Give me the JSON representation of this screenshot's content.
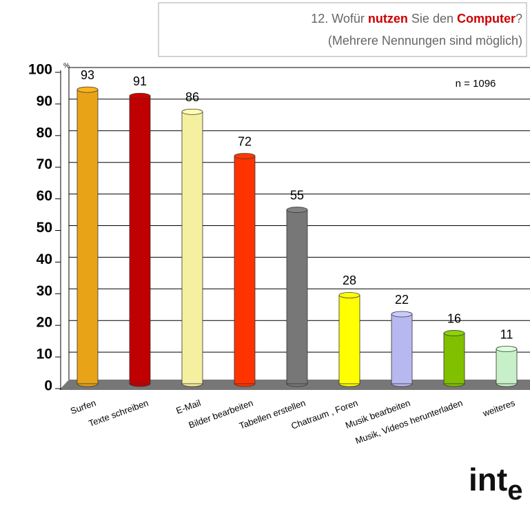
{
  "chart_data": {
    "type": "bar",
    "title_parts": [
      {
        "text": "12. Wofür ",
        "color": "#666666"
      },
      {
        "text": "nutzen",
        "color": "#cc0000"
      },
      {
        "text": " Sie den ",
        "color": "#666666"
      },
      {
        "text": "Computer",
        "color": "#cc0000"
      },
      {
        "text": "?",
        "color": "#666666"
      }
    ],
    "subtitle": "(Mehrere Nennungen sind möglich)",
    "annotation": "n = 1096",
    "unit": "%",
    "logo_parts": [
      "int",
      "e"
    ],
    "categories": [
      "Surfen",
      "Texte schreiben",
      "E-Mail",
      "Bilder bearbeiten",
      "Tabellen erstellen",
      "Chatraum , Foren",
      "Musik bearbeiten",
      "Musik, Videos herunterladen",
      "weiteres"
    ],
    "values": [
      93,
      91,
      86,
      72,
      55,
      28,
      22,
      16,
      11
    ],
    "colors": [
      "#e8a317",
      "#c00000",
      "#f5f0a0",
      "#ff3300",
      "#777777",
      "#ffff00",
      "#b8b8f0",
      "#80c000",
      "#c8f0c8"
    ],
    "ylim": [
      0,
      100
    ],
    "yticks": [
      0,
      10,
      20,
      30,
      40,
      50,
      60,
      70,
      80,
      90,
      100
    ],
    "grid": true
  }
}
